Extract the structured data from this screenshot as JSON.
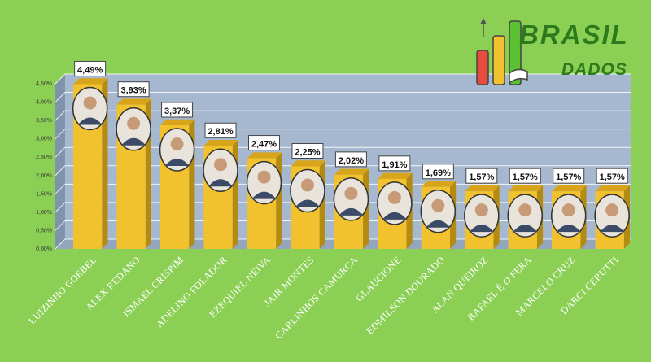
{
  "brand": {
    "line1": "BRASIL",
    "line2": "DADOS"
  },
  "colors": {
    "background": "#8ccf55",
    "plot_background": "#a6b8cf",
    "bar": "#f2c12e",
    "bar_side": "#b38a12",
    "grid": "#ffffff",
    "category_text": "#ffffff",
    "logo_text": "#2c7a1c"
  },
  "chart_data": {
    "type": "bar",
    "categories": [
      "LUIZINHO GOEBEL",
      "ALEX REDANO",
      "ISMAEL CRISPIM",
      "ADELINO FOLADOR",
      "EZEQUIEL NEIVA",
      "JAIR MONTES",
      "CARLINHOS CAMURÇA",
      "GLAUCIONE",
      "EDMILSON DOURADO",
      "ALAN QUEIROZ",
      "RAFAEL É O FERA",
      "MARCELO CRUZ",
      "DARCI CERUTTI"
    ],
    "values": [
      4.49,
      3.93,
      3.37,
      2.81,
      2.47,
      2.25,
      2.02,
      1.91,
      1.69,
      1.57,
      1.57,
      1.57,
      1.57
    ],
    "value_labels": [
      "4,49%",
      "3,93%",
      "3,37%",
      "2,81%",
      "2,47%",
      "2,25%",
      "2,02%",
      "1,91%",
      "1,69%",
      "1,57%",
      "1,57%",
      "1,57%",
      "1,57%"
    ],
    "y_ticks": [
      "0,00%",
      "0,50%",
      "1,00%",
      "1,50%",
      "2,00%",
      "2,50%",
      "3,00%",
      "3,50%",
      "4,00%",
      "4,50%"
    ],
    "ylim": [
      0,
      4.5
    ],
    "grid": true,
    "legend": "none"
  }
}
